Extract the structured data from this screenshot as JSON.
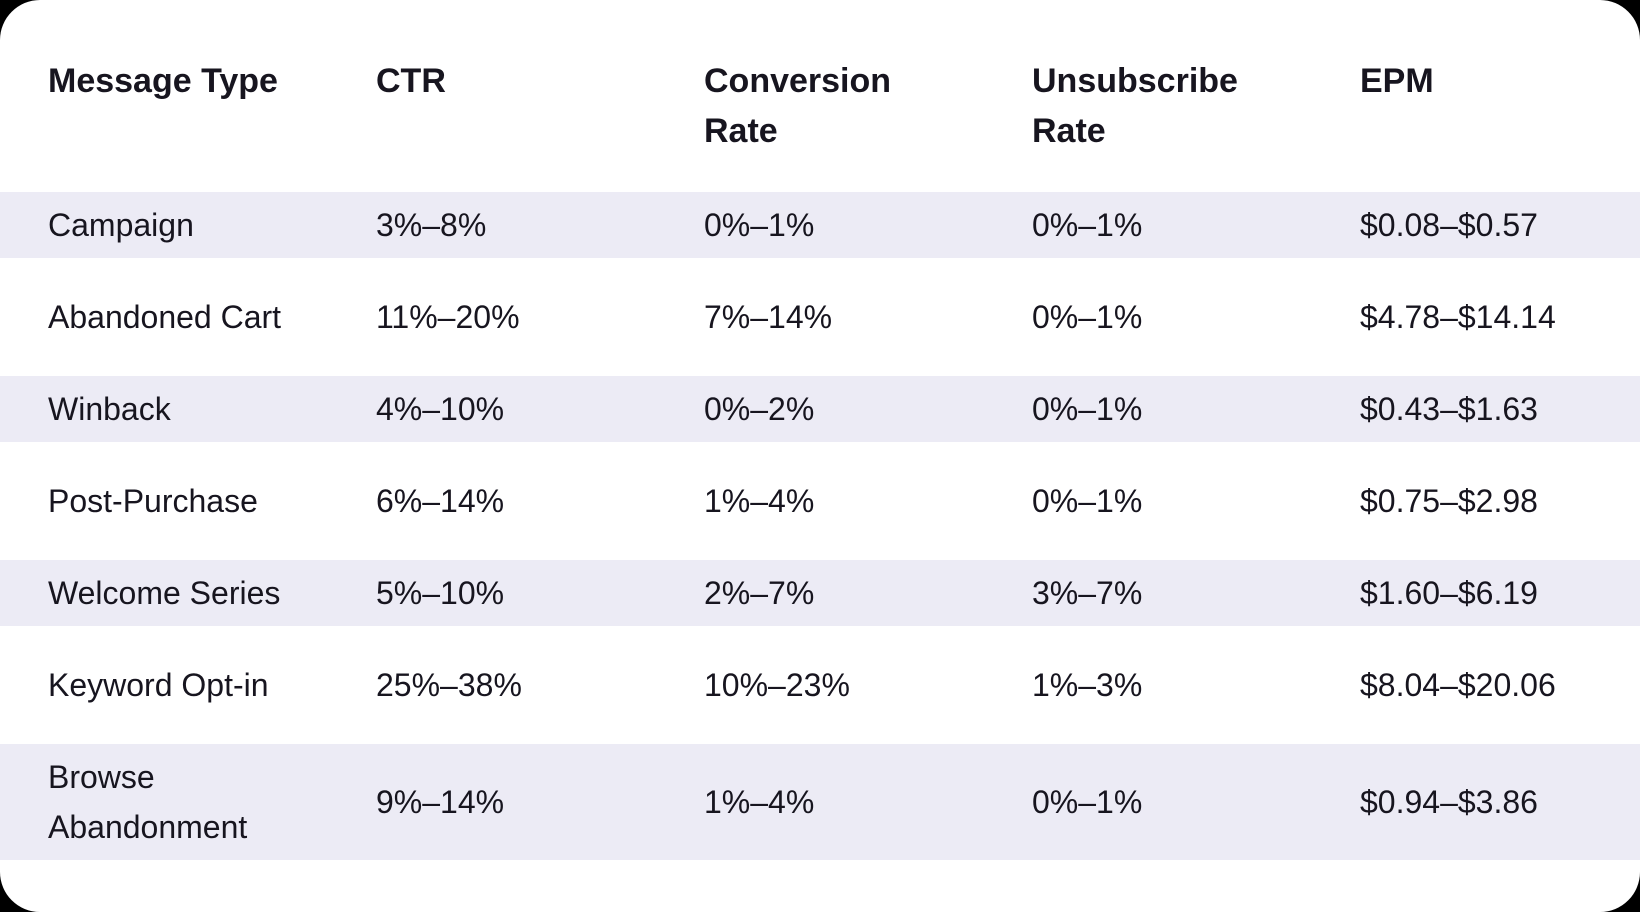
{
  "theme": {
    "page_background": "#000000",
    "card_background": "#ffffff",
    "stripe_color": "#ECEBF5",
    "text_color": "#17151F"
  },
  "table": {
    "header": [
      {
        "line1": "Message Type",
        "line2": ""
      },
      {
        "line1": "CTR",
        "line2": ""
      },
      {
        "line1": "Conversion",
        "line2": "Rate"
      },
      {
        "line1": "Unsubscribe",
        "line2": "Rate"
      },
      {
        "line1": "EPM",
        "line2": ""
      }
    ],
    "rows": [
      {
        "message_type": "Campaign",
        "ctr": "3%–8%",
        "conversion_rate": "0%–1%",
        "unsubscribe_rate": "0%–1%",
        "epm": "$0.08–$0.57"
      },
      {
        "message_type": "Abandoned Cart",
        "ctr": "11%–20%",
        "conversion_rate": "7%–14%",
        "unsubscribe_rate": "0%–1%",
        "epm": "$4.78–$14.14"
      },
      {
        "message_type": "Winback",
        "ctr": "4%–10%",
        "conversion_rate": "0%–2%",
        "unsubscribe_rate": "0%–1%",
        "epm": "$0.43–$1.63"
      },
      {
        "message_type": "Post-Purchase",
        "ctr": "6%–14%",
        "conversion_rate": "1%–4%",
        "unsubscribe_rate": "0%–1%",
        "epm": "$0.75–$2.98"
      },
      {
        "message_type": "Welcome Series",
        "ctr": "5%–10%",
        "conversion_rate": "2%–7%",
        "unsubscribe_rate": "3%–7%",
        "epm": "$1.60–$6.19"
      },
      {
        "message_type": "Keyword Opt-in",
        "ctr": "25%–38%",
        "conversion_rate": "10%–23%",
        "unsubscribe_rate": "1%–3%",
        "epm": "$8.04–$20.06"
      },
      {
        "message_type": "Browse Abandonment",
        "ctr": "9%–14%",
        "conversion_rate": "1%–4%",
        "unsubscribe_rate": "0%–1%",
        "epm": "$0.94–$3.86"
      }
    ]
  },
  "chart_data": {
    "type": "table",
    "title": "",
    "columns": [
      "Message Type",
      "CTR",
      "Conversion Rate",
      "Unsubscribe Rate",
      "EPM"
    ],
    "rows": [
      [
        "Campaign",
        "3%–8%",
        "0%–1%",
        "0%–1%",
        "$0.08–$0.57"
      ],
      [
        "Abandoned Cart",
        "11%–20%",
        "7%–14%",
        "0%–1%",
        "$4.78–$14.14"
      ],
      [
        "Winback",
        "4%–10%",
        "0%–2%",
        "0%–1%",
        "$0.43–$1.63"
      ],
      [
        "Post-Purchase",
        "6%–14%",
        "1%–4%",
        "0%–1%",
        "$0.75–$2.98"
      ],
      [
        "Welcome Series",
        "5%–10%",
        "2%–7%",
        "3%–7%",
        "$1.60–$6.19"
      ],
      [
        "Keyword Opt-in",
        "25%–38%",
        "10%–23%",
        "1%–3%",
        "$8.04–$20.06"
      ],
      [
        "Browse Abandonment",
        "9%–14%",
        "1%–4%",
        "0%–1%",
        "$0.94–$3.86"
      ]
    ],
    "layout": {
      "striped_rows": "odd rows lavender #ECEBF5",
      "header_position": "top",
      "grid": false
    }
  }
}
